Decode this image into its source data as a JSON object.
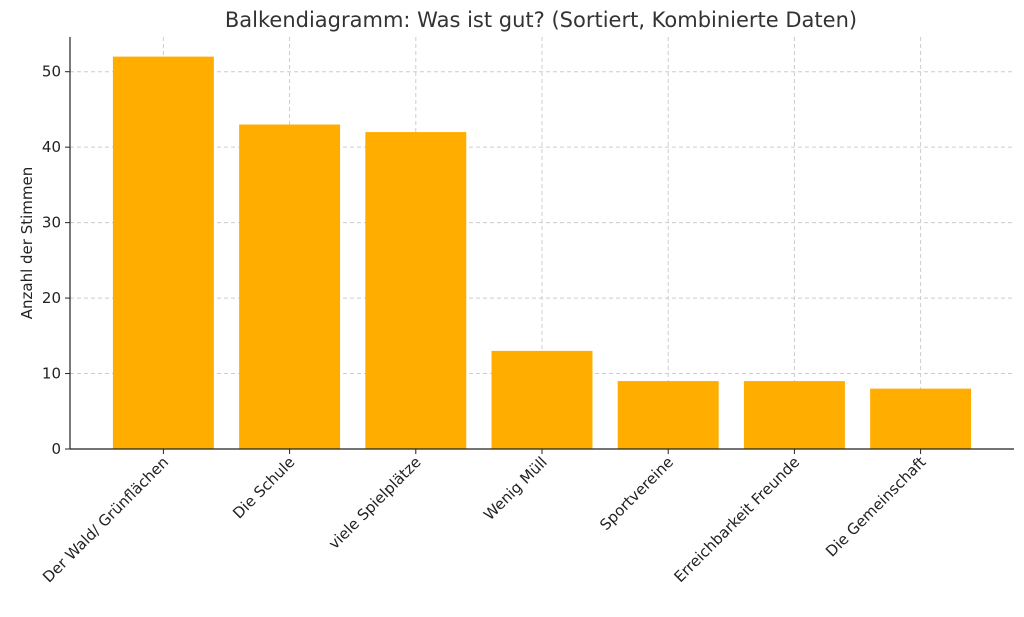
{
  "chart_data": {
    "type": "bar",
    "title": "Balkendiagramm: Was ist gut? (Sortiert, Kombinierte Daten)",
    "xlabel": "",
    "ylabel": "Anzahl der Stimmen",
    "categories": [
      "Der Wald/ Grünflächen",
      "Die Schule",
      "viele Spielplätze",
      "Wenig Müll",
      "Sportvereine",
      "Erreichbarkeit Freunde",
      "Die Gemeinschaft"
    ],
    "values": [
      52,
      43,
      42,
      13,
      9,
      9,
      8
    ],
    "ylim": [
      0,
      54.6
    ],
    "yticks": [
      0,
      10,
      20,
      30,
      40,
      50
    ],
    "grid": true,
    "bar_color": "#FFAE00",
    "xtick_rotation_deg": 45
  }
}
